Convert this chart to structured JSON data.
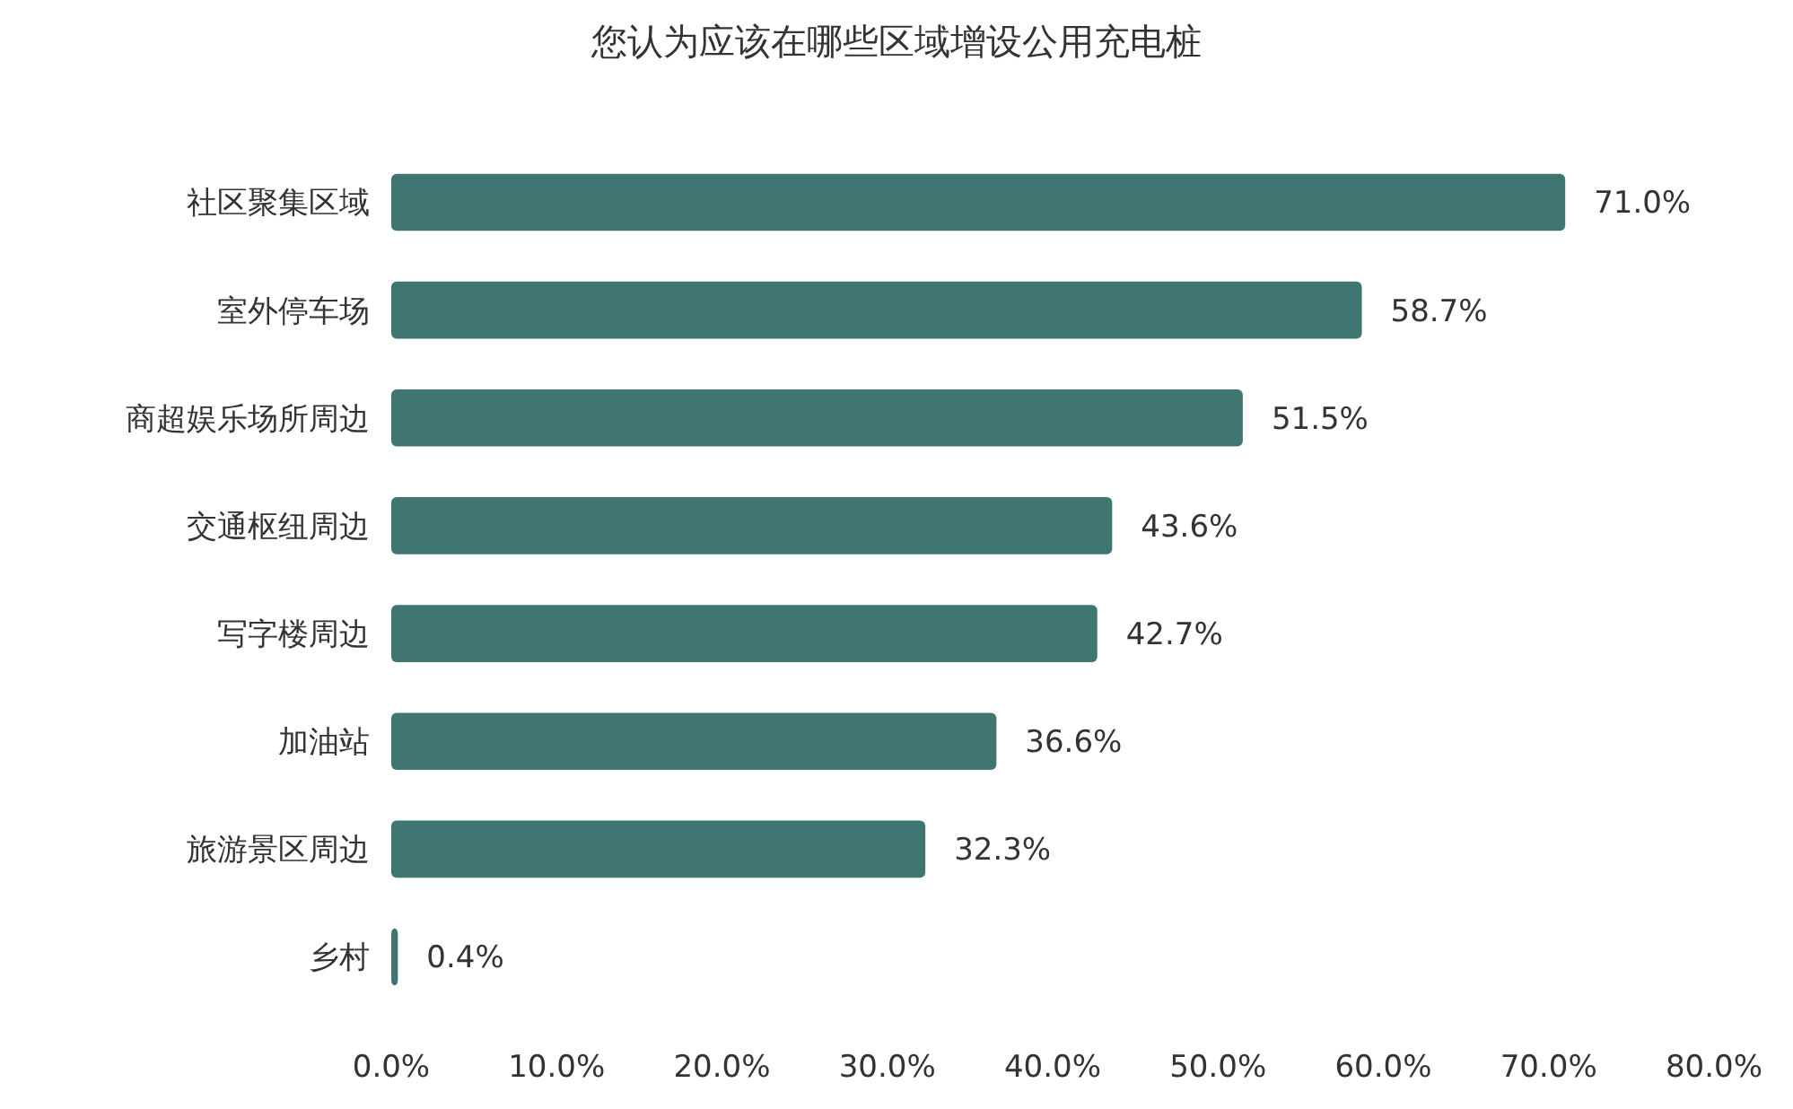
{
  "chart_data": {
    "type": "bar",
    "orientation": "horizontal",
    "title": "您认为应该在哪些区域增设公用充电桩",
    "categories": [
      "社区聚集区域",
      "室外停车场",
      "商超娱乐场所周边",
      "交通枢纽周边",
      "写字楼周边",
      "加油站",
      "旅游景区周边",
      "乡村"
    ],
    "values": [
      71.0,
      58.7,
      51.5,
      43.6,
      42.7,
      36.6,
      32.3,
      0.4
    ],
    "value_labels": [
      "71.0%",
      "58.7%",
      "51.5%",
      "43.6%",
      "42.7%",
      "36.6%",
      "32.3%",
      "0.4%"
    ],
    "color": "#3f7672",
    "xlim": [
      0,
      80
    ],
    "xticks": [
      {
        "value": 0,
        "label": "0.0%"
      },
      {
        "value": 10,
        "label": "10.0%"
      },
      {
        "value": 20,
        "label": "20.0%"
      },
      {
        "value": 30,
        "label": "30.0%"
      },
      {
        "value": 40,
        "label": "40.0%"
      },
      {
        "value": 50,
        "label": "50.0%"
      },
      {
        "value": 60,
        "label": "60.0%"
      },
      {
        "value": 70,
        "label": "70.0%"
      },
      {
        "value": 80,
        "label": "80.0%"
      }
    ],
    "grid": false
  }
}
